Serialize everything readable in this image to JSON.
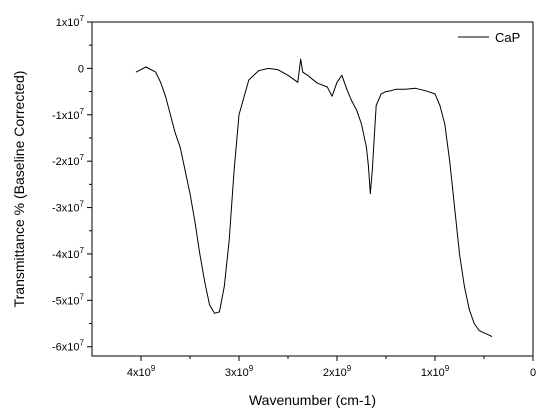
{
  "chart_data": {
    "type": "line",
    "xlabel": "Wavenumber (cm-1)",
    "ylabel": "Transmittance % (Baseline Corrected)",
    "xlim": [
      4500000000,
      0
    ],
    "ylim": [
      -62000000,
      10000000
    ],
    "x_ticks": [
      {
        "value": 4000000000,
        "base": "4x10",
        "exp": "9"
      },
      {
        "value": 3000000000,
        "base": "3x10",
        "exp": "9"
      },
      {
        "value": 2000000000,
        "base": "2x10",
        "exp": "9"
      },
      {
        "value": 1000000000,
        "base": "1x10",
        "exp": "9"
      },
      {
        "value": 0,
        "base": "0",
        "exp": ""
      }
    ],
    "y_ticks": [
      {
        "value": 10000000,
        "base": "1x10",
        "exp": "7"
      },
      {
        "value": 0,
        "base": "0",
        "exp": ""
      },
      {
        "value": -10000000,
        "base": "-1x10",
        "exp": "7"
      },
      {
        "value": -20000000,
        "base": "-2x10",
        "exp": "7"
      },
      {
        "value": -30000000,
        "base": "-3x10",
        "exp": "7"
      },
      {
        "value": -40000000,
        "base": "-4x10",
        "exp": "7"
      },
      {
        "value": -50000000,
        "base": "-5x10",
        "exp": "7"
      },
      {
        "value": -60000000,
        "base": "-6x10",
        "exp": "7"
      }
    ],
    "grid": false,
    "legend_position": "top-right",
    "series": [
      {
        "name": "CaP",
        "color": "#000000",
        "x": [
          4050000000,
          3950000000,
          3850000000,
          3800000000,
          3750000000,
          3700000000,
          3650000000,
          3600000000,
          3550000000,
          3500000000,
          3450000000,
          3400000000,
          3350000000,
          3300000000,
          3250000000,
          3200000000,
          3150000000,
          3100000000,
          3050000000,
          3000000000,
          2900000000,
          2800000000,
          2700000000,
          2600000000,
          2500000000,
          2400000000,
          2370000000,
          2350000000,
          2300000000,
          2200000000,
          2100000000,
          2050000000,
          2000000000,
          1950000000,
          1900000000,
          1850000000,
          1800000000,
          1750000000,
          1700000000,
          1680000000,
          1660000000,
          1640000000,
          1620000000,
          1600000000,
          1550000000,
          1500000000,
          1450000000,
          1400000000,
          1300000000,
          1200000000,
          1100000000,
          1000000000,
          950000000,
          900000000,
          850000000,
          800000000,
          750000000,
          700000000,
          650000000,
          600000000,
          550000000,
          500000000,
          450000000,
          420000000
        ],
        "y": [
          -800000,
          300000,
          -800000,
          -3000000,
          -6000000,
          -10000000,
          -14000000,
          -17000000,
          -22000000,
          -27000000,
          -33000000,
          -40000000,
          -46000000,
          -51000000,
          -52800000,
          -52500000,
          -47000000,
          -37000000,
          -22000000,
          -10000000,
          -2500000,
          -500000,
          0,
          -300000,
          -1500000,
          -3000000,
          2000000,
          -800000,
          -1500000,
          -3200000,
          -4000000,
          -6000000,
          -3000000,
          -1500000,
          -4500000,
          -7000000,
          -9000000,
          -12000000,
          -17000000,
          -21000000,
          -27000000,
          -22000000,
          -15000000,
          -8000000,
          -5500000,
          -5000000,
          -4800000,
          -4500000,
          -4500000,
          -4300000,
          -4800000,
          -5500000,
          -8000000,
          -12000000,
          -20000000,
          -30000000,
          -40000000,
          -47000000,
          -52000000,
          -55000000,
          -56500000,
          -57000000,
          -57500000,
          -57800000
        ]
      }
    ]
  }
}
